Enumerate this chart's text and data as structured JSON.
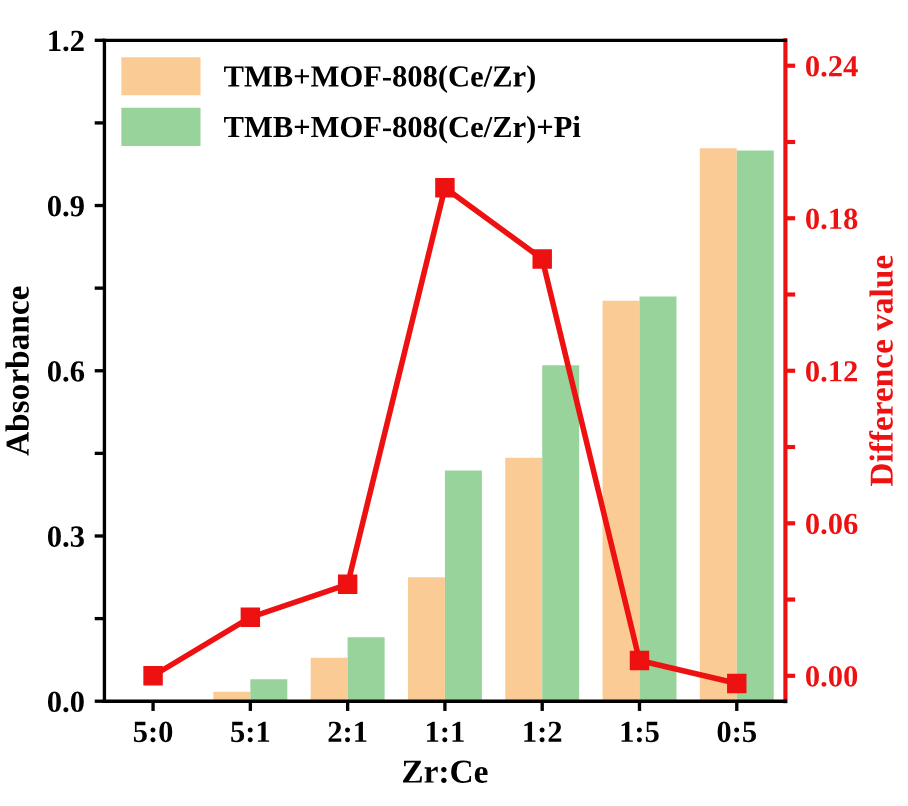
{
  "chart_data": {
    "type": "bar",
    "xlabel": "Zr:Ce",
    "ylabel": "Absorbance",
    "y2label": "Difference value",
    "categories": [
      "5:0",
      "5:1",
      "2:1",
      "1:1",
      "1:2",
      "1:5",
      "0:5"
    ],
    "series": [
      {
        "name": "TMB+MOF-808(Ce/Zr)",
        "color": "#fbcb95",
        "values": [
          0,
          0.017,
          0.079,
          0.225,
          0.442,
          0.727,
          1.004
        ]
      },
      {
        "name": "TMB+MOF-808(Ce/Zr)+Pi",
        "color": "#97d39a",
        "values": [
          0,
          0.04,
          0.116,
          0.419,
          0.61,
          0.735,
          1.0
        ]
      },
      {
        "type": "line",
        "axis": "y2",
        "color": "#ee1111",
        "marker": "square",
        "values": [
          0,
          0.023,
          0.036,
          0.192,
          0.164,
          0.006,
          -0.003
        ]
      }
    ],
    "ylim": [
      0,
      1.2
    ],
    "yticks": [
      {
        "value": 0,
        "label": "0.0"
      },
      {
        "value": 0.15,
        "label": null
      },
      0.3,
      {
        "value": 0.45,
        "label": null
      },
      0.6,
      {
        "value": 0.75,
        "label": null
      },
      0.9,
      {
        "value": 1.05,
        "label": null
      },
      1.2
    ],
    "y2lim": [
      -0.01,
      0.25
    ],
    "y2ticks": [
      {
        "value": 0,
        "label": "0.00"
      },
      {
        "value": 0.03,
        "label": null
      },
      0.06,
      {
        "value": 0.09,
        "label": null
      },
      0.12,
      {
        "value": 0.15,
        "label": null
      },
      0.18,
      {
        "value": 0.21,
        "label": null
      },
      0.24
    ],
    "legend": "top left",
    "grid": false
  }
}
